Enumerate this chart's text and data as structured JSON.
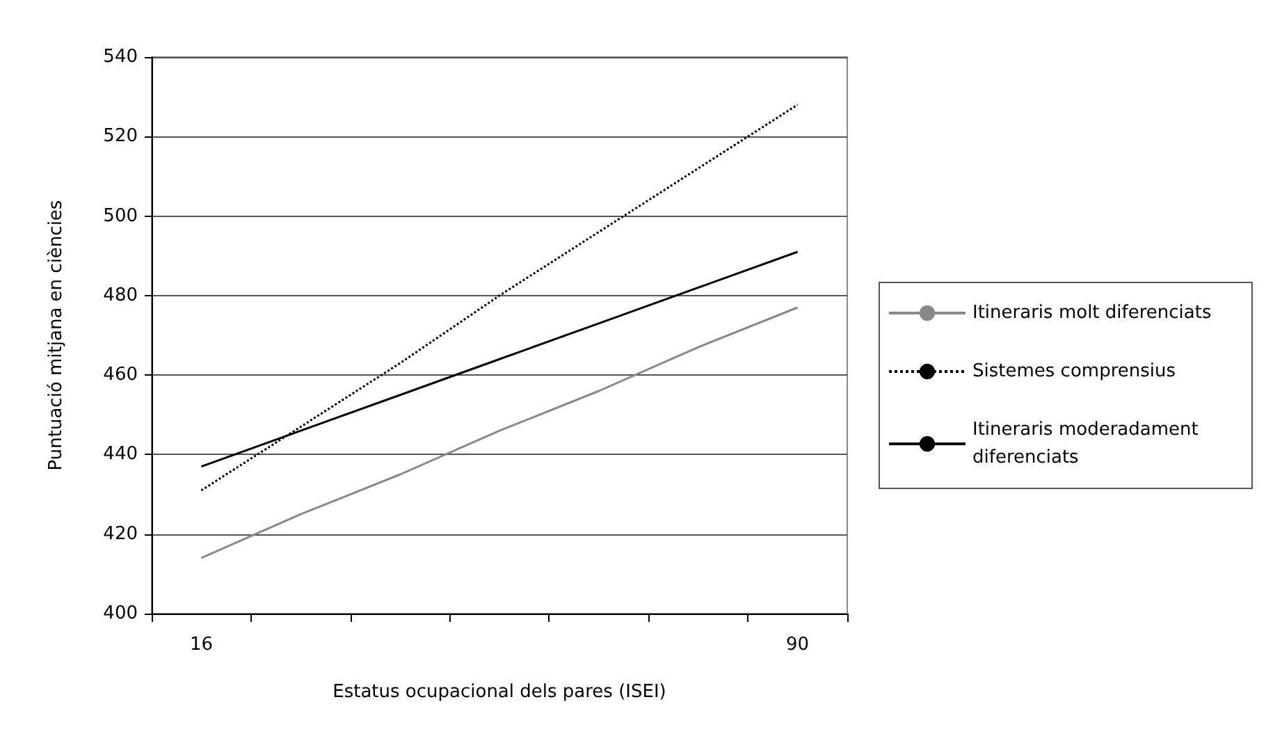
{
  "chart_data": {
    "type": "line",
    "xlabel": "Estatus ocupacional dels pares (ISEI)",
    "ylabel": "Puntuació mitjana en ciències",
    "categories": [
      "16",
      null,
      null,
      null,
      null,
      null,
      "90"
    ],
    "series": [
      {
        "name": "Itineraris molt diferenciats",
        "color": "#888888",
        "line_style": "solid",
        "values": [
          414,
          425,
          435,
          446,
          456,
          467,
          477
        ]
      },
      {
        "name": "Sistemes comprensius",
        "color": "#000000",
        "line_style": "dotted",
        "values": [
          431,
          447,
          463,
          480,
          496,
          512,
          528
        ]
      },
      {
        "name": "Itineraris moderadament diferenciats",
        "color": "#000000",
        "line_style": "solid",
        "values": [
          437,
          446,
          455,
          464,
          473,
          482,
          491
        ]
      }
    ],
    "ylim": [
      400,
      540
    ],
    "yticks": [
      400,
      420,
      440,
      460,
      480,
      500,
      520,
      540
    ],
    "grid": "y",
    "legend": "right",
    "marker": "none"
  }
}
